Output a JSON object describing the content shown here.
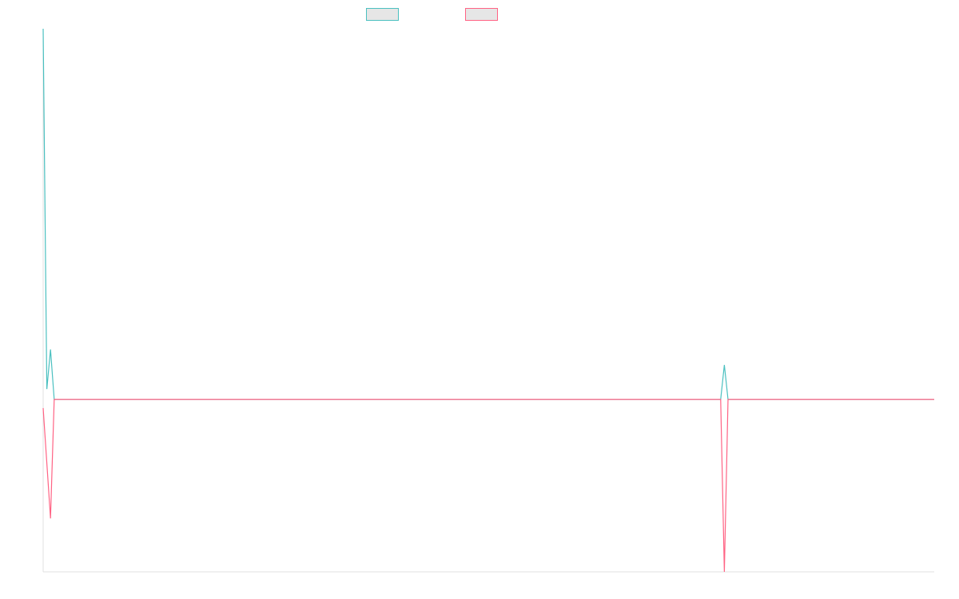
{
  "chart_data": {
    "type": "line",
    "x": [
      0,
      1,
      2,
      3,
      184,
      185,
      186,
      242
    ],
    "xlim": [
      0,
      242
    ],
    "ylim": [
      -1,
      2.15
    ],
    "series": [
      {
        "color": "#4bc0c0",
        "values": [
          2.15,
          0.06,
          0.29,
          0,
          0,
          0.2,
          0,
          0
        ]
      },
      {
        "color": "#ff6384",
        "values": [
          -0.05,
          -0.37,
          -0.69,
          0,
          0,
          -1,
          0,
          0
        ]
      }
    ]
  }
}
